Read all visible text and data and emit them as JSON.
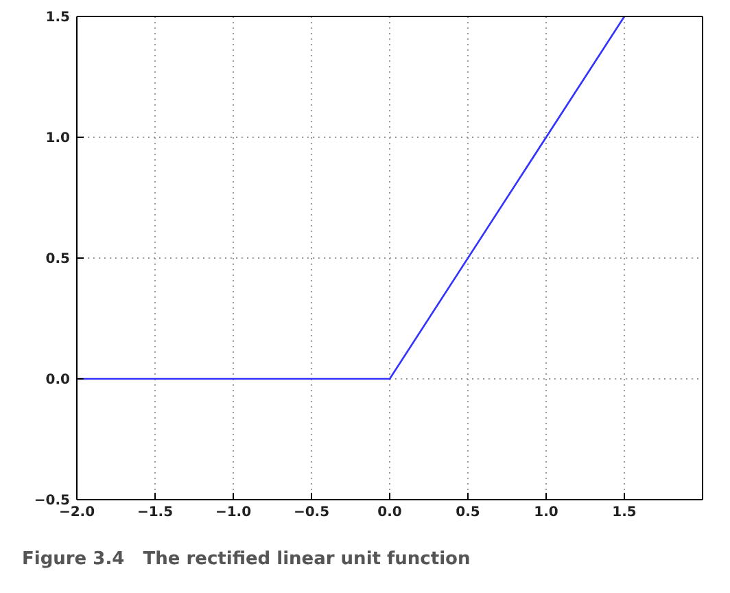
{
  "chart_data": {
    "type": "line",
    "annotations": [
      "Figure 3.4   The rectified linear unit function"
    ],
    "x": [
      -2,
      0,
      1.5
    ],
    "series": [
      {
        "color": "#3333ff",
        "values": [
          0,
          0,
          1.5
        ]
      }
    ],
    "xlim": [
      -2,
      2
    ],
    "ylim": [
      -0.5,
      1.5
    ],
    "xticks": [
      {
        "value": -2,
        "label": "−2.0"
      },
      {
        "value": -1.5,
        "label": "−1.5"
      },
      {
        "value": -1,
        "label": "−1.0"
      },
      {
        "value": -0.5,
        "label": "−0.5"
      },
      {
        "value": 0,
        "label": "0.0"
      },
      {
        "value": 0.5,
        "label": "0.5"
      },
      {
        "value": 1,
        "label": "1.0"
      },
      {
        "value": 1.5,
        "label": "1.5"
      }
    ],
    "yticks": [
      {
        "value": -0.5,
        "label": "−0.5"
      },
      {
        "value": 0,
        "label": "0.0"
      },
      {
        "value": 0.5,
        "label": "0.5"
      },
      {
        "value": 1,
        "label": "1.0"
      },
      {
        "value": 1.5,
        "label": "1.5"
      }
    ],
    "grid": true,
    "marker": "none",
    "line_style": "solid"
  }
}
